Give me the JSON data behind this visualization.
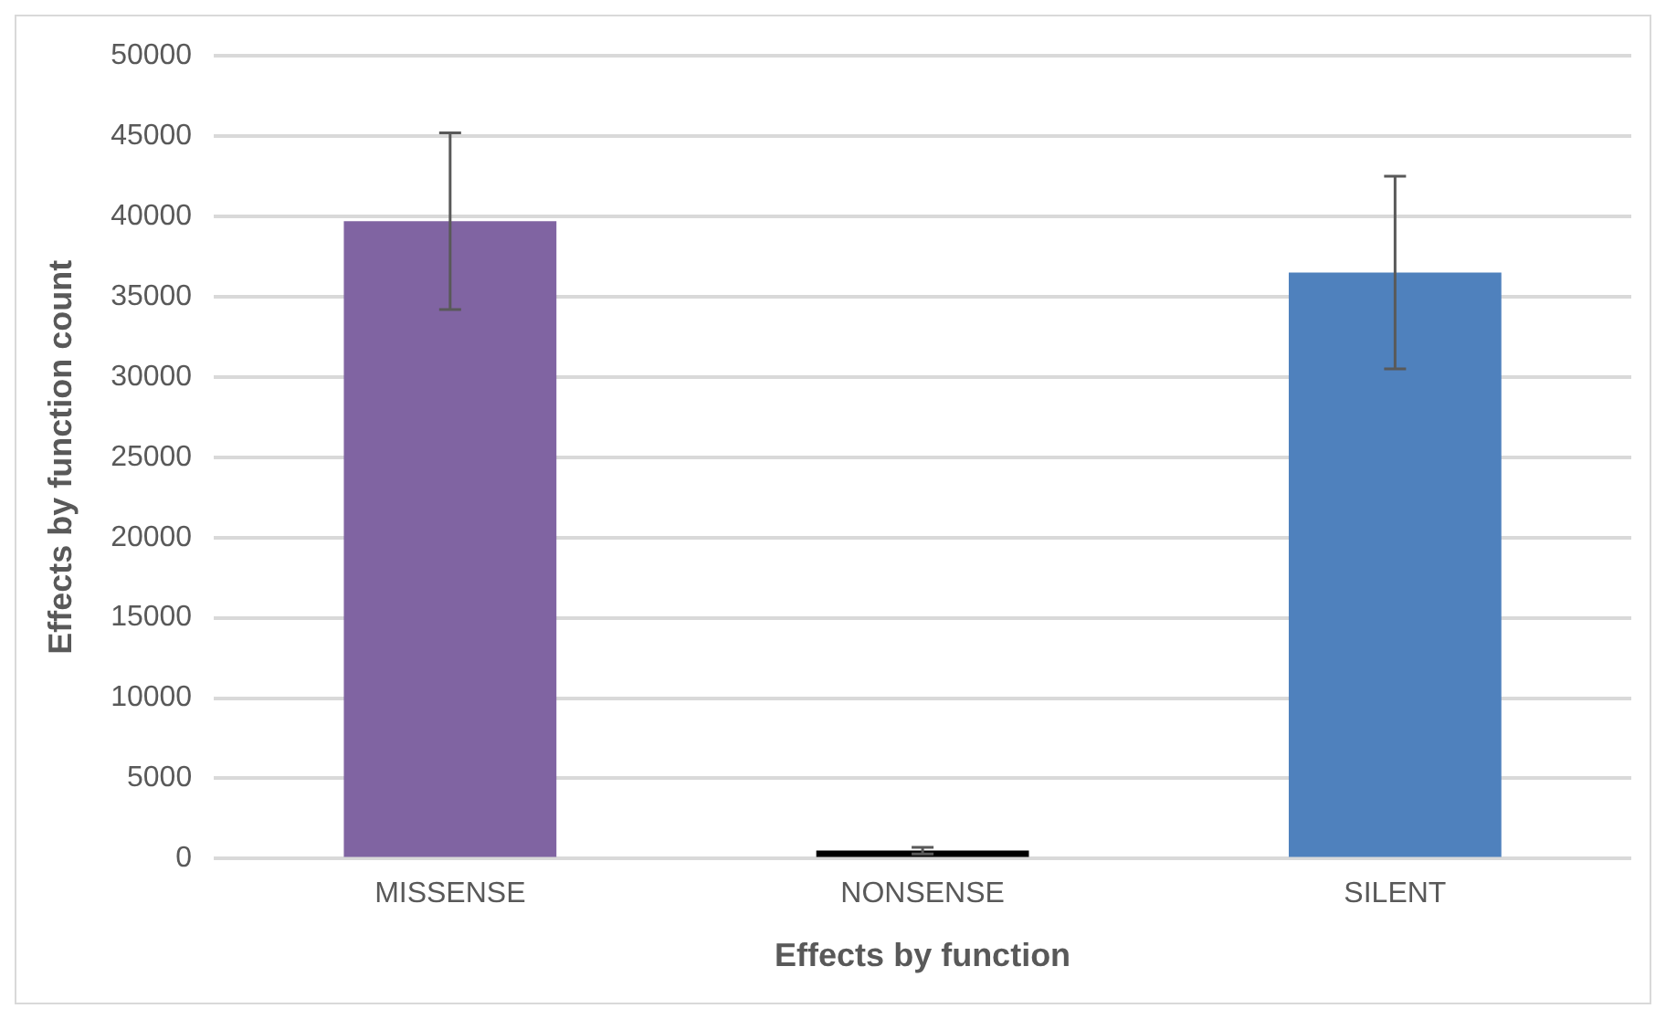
{
  "chart_data": {
    "type": "bar",
    "xlabel": "Effects by function",
    "ylabel": "Effects by function count",
    "categories": [
      "MISSENSE",
      "NONSENSE",
      "SILENT"
    ],
    "values": [
      39700,
      500,
      36500
    ],
    "colors": [
      "#8064a2",
      "#000000",
      "#4f81bd"
    ],
    "errors": [
      5500,
      200,
      6000
    ],
    "ylim": [
      0,
      50000
    ],
    "yticks": [
      0,
      5000,
      10000,
      15000,
      20000,
      25000,
      30000,
      35000,
      40000,
      45000,
      50000
    ],
    "grid": "y",
    "legend": false
  }
}
